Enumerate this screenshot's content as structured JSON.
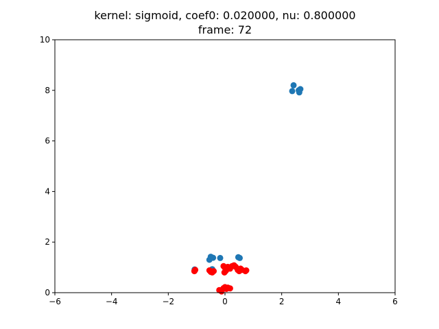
{
  "chart_data": {
    "type": "scatter",
    "title_lines": [
      "kernel:  sigmoid, coef0: 0.020000, nu:  0.800000",
      "frame: 72"
    ],
    "xlabel": "",
    "ylabel": "",
    "xlim": [
      -6,
      6
    ],
    "ylim": [
      0,
      10
    ],
    "xticks": [
      -6,
      -4,
      -2,
      0,
      2,
      4,
      6
    ],
    "xtick_labels": [
      "−6",
      "−4",
      "−2",
      "0",
      "2",
      "4",
      "6"
    ],
    "yticks": [
      0,
      2,
      4,
      6,
      8,
      10
    ],
    "ytick_labels": [
      "0",
      "2",
      "4",
      "6",
      "8",
      "10"
    ],
    "grid": false,
    "legend": "none",
    "series": [
      {
        "color": "#1f77b4",
        "points": [
          [
            2.42,
            8.2
          ],
          [
            2.37,
            7.97
          ],
          [
            2.62,
            7.92
          ],
          [
            2.66,
            8.05
          ],
          [
            2.6,
            8.0
          ],
          [
            -0.5,
            1.42
          ],
          [
            -0.55,
            1.3
          ],
          [
            -0.42,
            1.38
          ],
          [
            -0.17,
            1.37
          ],
          [
            0.47,
            1.4
          ],
          [
            0.52,
            1.37
          ],
          [
            -1.07,
            0.92
          ],
          [
            -0.45,
            0.93
          ]
        ]
      },
      {
        "color": "#ff0000",
        "points": [
          [
            -1.08,
            0.85
          ],
          [
            -1.05,
            0.9
          ],
          [
            -0.55,
            0.88
          ],
          [
            -0.5,
            0.82
          ],
          [
            -0.45,
            0.8
          ],
          [
            -0.4,
            0.85
          ],
          [
            -0.05,
            1.05
          ],
          [
            0.0,
            0.98
          ],
          [
            0.05,
            0.9
          ],
          [
            0.1,
            1.02
          ],
          [
            0.18,
            0.95
          ],
          [
            0.25,
            1.05
          ],
          [
            0.32,
            1.08
          ],
          [
            0.38,
            1.02
          ],
          [
            0.45,
            0.9
          ],
          [
            0.5,
            0.85
          ],
          [
            0.55,
            0.95
          ],
          [
            0.72,
            0.85
          ],
          [
            0.75,
            0.88
          ],
          [
            -0.02,
            0.8
          ],
          [
            0.02,
            0.85
          ],
          [
            0.6,
            0.9
          ],
          [
            -0.2,
            0.1
          ],
          [
            -0.1,
            0.12
          ],
          [
            -0.05,
            0.18
          ],
          [
            0.0,
            0.22
          ],
          [
            0.05,
            0.15
          ],
          [
            0.1,
            0.2
          ],
          [
            0.18,
            0.17
          ],
          [
            -0.12,
            0.05
          ]
        ]
      }
    ]
  }
}
